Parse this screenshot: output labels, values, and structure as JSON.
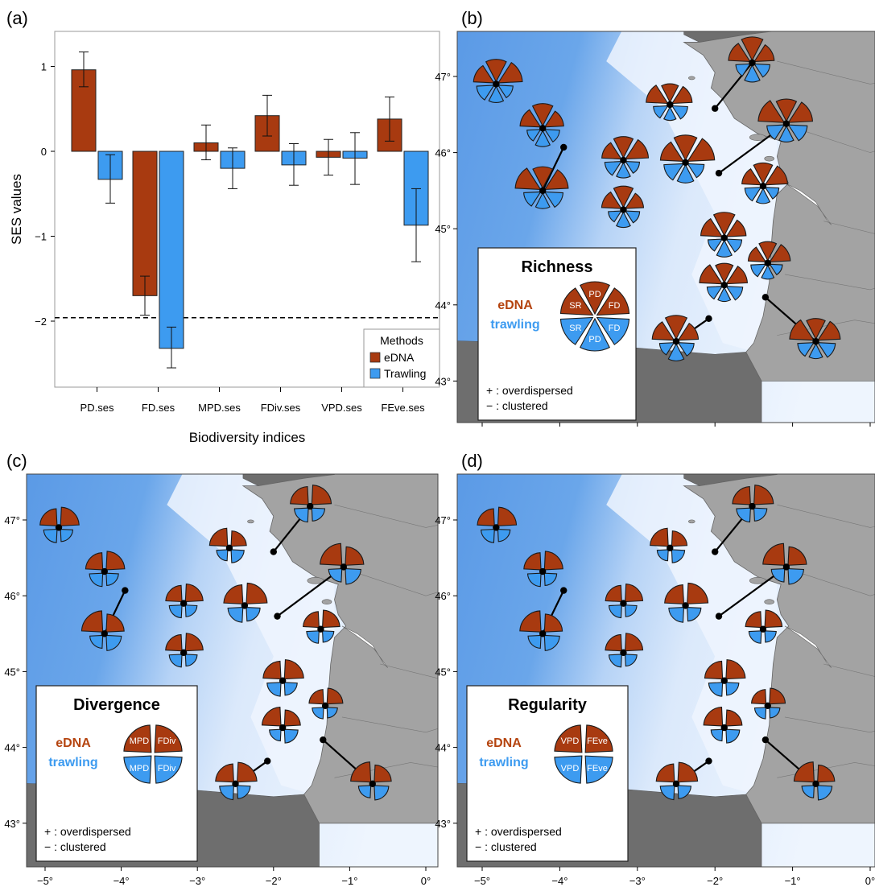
{
  "colors": {
    "edna": "#a83a10",
    "trawling": "#3d9bf0",
    "land_dark": "#6e6e6e",
    "land": "#a3a3a3",
    "deep_sea": "#5b9ae6",
    "shallow_sea": "#eaf3fd",
    "dna_text": "#b5440f",
    "trawl_text": "#3d9bf0"
  },
  "panel_labels": {
    "a": "(a)",
    "b": "(b)",
    "c": "(c)",
    "d": "(d)"
  },
  "chart_data": [
    {
      "type": "bar",
      "panel": "(a)",
      "categories": [
        "PD.ses",
        "FD.ses",
        "MPD.ses",
        "FDiv.ses",
        "VPD.ses",
        "FEve.ses"
      ],
      "series": [
        {
          "name": "eDNA",
          "values": [
            0.96,
            -1.7,
            0.1,
            0.42,
            -0.07,
            0.38
          ],
          "error_low": [
            0.76,
            -1.93,
            -0.1,
            0.18,
            -0.28,
            0.12
          ],
          "error_high": [
            1.17,
            -1.47,
            0.31,
            0.66,
            0.14,
            0.64
          ]
        },
        {
          "name": "Trawling",
          "values": [
            -0.33,
            -2.32,
            -0.2,
            -0.16,
            -0.08,
            -0.87
          ],
          "error_low": [
            -0.61,
            -2.55,
            -0.44,
            -0.4,
            -0.39,
            -1.3
          ],
          "error_high": [
            -0.04,
            -2.07,
            0.04,
            0.09,
            0.22,
            -0.44
          ]
        }
      ],
      "xlabel": "Biodiversity indices",
      "ylabel": "SES values",
      "ylim": [
        -2.8,
        1.4
      ],
      "yticks": [
        1,
        0,
        -1,
        -2
      ],
      "ytick_labels": [
        "1",
        "0",
        "−1",
        "−2"
      ],
      "reference_line": -1.96,
      "legend": {
        "title": "Methods",
        "entries": [
          "eDNA",
          "Trawling"
        ],
        "position": "bottom-right"
      }
    }
  ],
  "maps": {
    "lon_ticks": [
      -5,
      -4,
      -3,
      -2,
      -1,
      0
    ],
    "lon_labels": [
      "−5°",
      "−4°",
      "−3°",
      "−2°",
      "−1°",
      "0°"
    ],
    "lat_ticks": [
      47,
      46,
      45,
      44,
      43
    ],
    "lat_labels": [
      "47°",
      "46°",
      "45°",
      "44°",
      "43°"
    ],
    "stations": [
      {
        "lon": -4.82,
        "lat": 46.9
      },
      {
        "lon": -4.22,
        "lat": 46.32
      },
      {
        "lon": -4.22,
        "lat": 45.5,
        "anchor_lon": -3.95,
        "anchor_lat": 46.07
      },
      {
        "lon": -3.18,
        "lat": 45.9
      },
      {
        "lon": -3.18,
        "lat": 45.25
      },
      {
        "lon": -2.58,
        "lat": 46.63
      },
      {
        "lon": -2.38,
        "lat": 45.87
      },
      {
        "lon": -1.52,
        "lat": 47.18,
        "anchor_lon": -2.0,
        "anchor_lat": 46.58
      },
      {
        "lon": -1.08,
        "lat": 46.38,
        "anchor_lon": -1.95,
        "anchor_lat": 45.73
      },
      {
        "lon": -1.38,
        "lat": 45.56
      },
      {
        "lon": -1.88,
        "lat": 44.88
      },
      {
        "lon": -1.88,
        "lat": 44.26
      },
      {
        "lon": -1.32,
        "lat": 44.55
      },
      {
        "lon": -2.5,
        "lat": 43.52,
        "anchor_lon": -2.08,
        "anchor_lat": 43.82
      },
      {
        "lon": -0.7,
        "lat": 43.52,
        "anchor_lon": -1.35,
        "anchor_lat": 44.1
      }
    ],
    "panels": [
      {
        "label": "(b)",
        "title": "Richness",
        "wedges": [
          "SR",
          "PD",
          "FD"
        ],
        "split": 3,
        "edna": "eDNA",
        "trawling": "trawling",
        "notes": [
          "+ : overdispersed",
          "− : clustered"
        ]
      },
      {
        "label": "(c)",
        "title": "Divergence",
        "wedges": [
          "MPD",
          "FDiv"
        ],
        "split": 2,
        "edna": "eDNA",
        "trawling": "trawling",
        "notes": [
          "+ : overdispersed",
          "− : clustered"
        ]
      },
      {
        "label": "(d)",
        "title": "Regularity",
        "wedges": [
          "VPD",
          "FEve"
        ],
        "split": 2,
        "edna": "eDNA",
        "trawling": "trawling",
        "notes": [
          "+ : overdispersed",
          "− : clustered"
        ]
      }
    ]
  }
}
